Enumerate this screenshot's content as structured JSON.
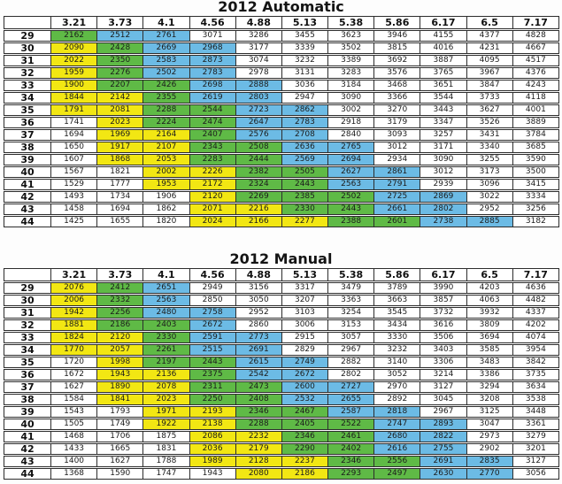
{
  "chart_data": [
    {
      "type": "table",
      "title": "2012 Automatic",
      "columns": [
        "3.21",
        "3.73",
        "4.1",
        "4.56",
        "4.88",
        "5.13",
        "5.38",
        "5.86",
        "6.17",
        "6.5",
        "7.17"
      ],
      "row_labels": [
        "29",
        "30",
        "31",
        "32",
        "33",
        "34",
        "35",
        "36",
        "37",
        "38",
        "39",
        "40",
        "41",
        "42",
        "43",
        "44"
      ],
      "values": [
        [
          2162,
          2512,
          2761,
          3071,
          3286,
          3455,
          3623,
          3946,
          4155,
          4377,
          4828
        ],
        [
          2090,
          2428,
          2669,
          2968,
          3177,
          3339,
          3502,
          3815,
          4016,
          4231,
          4667
        ],
        [
          2022,
          2350,
          2583,
          2873,
          3074,
          3232,
          3389,
          3692,
          3887,
          4095,
          4517
        ],
        [
          1959,
          2276,
          2502,
          2783,
          2978,
          3131,
          3283,
          3576,
          3765,
          3967,
          4376
        ],
        [
          1900,
          2207,
          2426,
          2698,
          2888,
          3036,
          3184,
          3468,
          3651,
          3847,
          4243
        ],
        [
          1844,
          2142,
          2355,
          2619,
          2803,
          2947,
          3090,
          3366,
          3544,
          3733,
          4118
        ],
        [
          1791,
          2081,
          2288,
          2544,
          2723,
          2862,
          3002,
          3270,
          3443,
          3627,
          4001
        ],
        [
          1741,
          2023,
          2224,
          2474,
          2647,
          2783,
          2918,
          3179,
          3347,
          3526,
          3889
        ],
        [
          1694,
          1969,
          2164,
          2407,
          2576,
          2708,
          2840,
          3093,
          3257,
          3431,
          3784
        ],
        [
          1650,
          1917,
          2107,
          2343,
          2508,
          2636,
          2765,
          3012,
          3171,
          3340,
          3685
        ],
        [
          1607,
          1868,
          2053,
          2283,
          2444,
          2569,
          2694,
          2934,
          3090,
          3255,
          3590
        ],
        [
          1567,
          1821,
          2002,
          2226,
          2382,
          2505,
          2627,
          2861,
          3012,
          3173,
          3500
        ],
        [
          1529,
          1777,
          1953,
          2172,
          2324,
          2443,
          2563,
          2791,
          2939,
          3096,
          3415
        ],
        [
          1493,
          1734,
          1906,
          2120,
          2269,
          2385,
          2502,
          2725,
          2869,
          3022,
          3334
        ],
        [
          1458,
          1694,
          1862,
          2071,
          2216,
          2330,
          2443,
          2661,
          2802,
          2952,
          3256
        ],
        [
          1425,
          1655,
          1820,
          2024,
          2166,
          2277,
          2388,
          2601,
          2738,
          2885,
          3182
        ]
      ],
      "cell_colors": [
        [
          "G",
          "B",
          "B",
          "W",
          "W",
          "W",
          "W",
          "W",
          "W",
          "W",
          "W"
        ],
        [
          "Y",
          "G",
          "B",
          "B",
          "W",
          "W",
          "W",
          "W",
          "W",
          "W",
          "W"
        ],
        [
          "Y",
          "G",
          "B",
          "B",
          "W",
          "W",
          "W",
          "W",
          "W",
          "W",
          "W"
        ],
        [
          "Y",
          "G",
          "B",
          "B",
          "W",
          "W",
          "W",
          "W",
          "W",
          "W",
          "W"
        ],
        [
          "Y",
          "G",
          "G",
          "B",
          "B",
          "W",
          "W",
          "W",
          "W",
          "W",
          "W"
        ],
        [
          "Y",
          "Y",
          "G",
          "B",
          "B",
          "W",
          "W",
          "W",
          "W",
          "W",
          "W"
        ],
        [
          "Y",
          "Y",
          "G",
          "G",
          "B",
          "B",
          "W",
          "W",
          "W",
          "W",
          "W"
        ],
        [
          "W",
          "Y",
          "G",
          "G",
          "B",
          "B",
          "W",
          "W",
          "W",
          "W",
          "W"
        ],
        [
          "W",
          "Y",
          "Y",
          "G",
          "B",
          "B",
          "W",
          "W",
          "W",
          "W",
          "W"
        ],
        [
          "W",
          "Y",
          "Y",
          "G",
          "G",
          "B",
          "B",
          "W",
          "W",
          "W",
          "W"
        ],
        [
          "W",
          "Y",
          "Y",
          "G",
          "G",
          "B",
          "B",
          "W",
          "W",
          "W",
          "W"
        ],
        [
          "W",
          "W",
          "Y",
          "Y",
          "G",
          "G",
          "B",
          "B",
          "W",
          "W",
          "W"
        ],
        [
          "W",
          "W",
          "Y",
          "Y",
          "G",
          "G",
          "B",
          "B",
          "W",
          "W",
          "W"
        ],
        [
          "W",
          "W",
          "W",
          "Y",
          "G",
          "G",
          "G",
          "B",
          "B",
          "W",
          "W"
        ],
        [
          "W",
          "W",
          "W",
          "Y",
          "Y",
          "G",
          "G",
          "B",
          "B",
          "W",
          "W"
        ],
        [
          "W",
          "W",
          "W",
          "Y",
          "Y",
          "Y",
          "G",
          "G",
          "B",
          "B",
          "W"
        ]
      ],
      "color_key": {
        "Y": "#f2e713",
        "G": "#5fba46",
        "B": "#6cbbe5",
        "W": "#ffffff"
      }
    },
    {
      "type": "table",
      "title": "2012 Manual",
      "columns": [
        "3.21",
        "3.73",
        "4.1",
        "4.56",
        "4.88",
        "5.13",
        "5.38",
        "5.86",
        "6.17",
        "6.5",
        "7.17"
      ],
      "row_labels": [
        "29",
        "30",
        "31",
        "32",
        "33",
        "34",
        "35",
        "36",
        "37",
        "38",
        "39",
        "40",
        "41",
        "42",
        "43",
        "44"
      ],
      "values": [
        [
          2076,
          2412,
          2651,
          2949,
          3156,
          3317,
          3479,
          3789,
          3990,
          4203,
          4636
        ],
        [
          2006,
          2332,
          2563,
          2850,
          3050,
          3207,
          3363,
          3663,
          3857,
          4063,
          4482
        ],
        [
          1942,
          2256,
          2480,
          2758,
          2952,
          3103,
          3254,
          3545,
          3732,
          3932,
          4337
        ],
        [
          1881,
          2186,
          2403,
          2672,
          2860,
          3006,
          3153,
          3434,
          3616,
          3809,
          4202
        ],
        [
          1824,
          2120,
          2330,
          2591,
          2773,
          2915,
          3057,
          3330,
          3506,
          3694,
          4074
        ],
        [
          1770,
          2057,
          2261,
          2515,
          2691,
          2829,
          2967,
          3232,
          3403,
          3585,
          3954
        ],
        [
          1720,
          1998,
          2197,
          2443,
          2615,
          2749,
          2882,
          3140,
          3306,
          3483,
          3842
        ],
        [
          1672,
          1943,
          2136,
          2375,
          2542,
          2672,
          2802,
          3052,
          3214,
          3386,
          3735
        ],
        [
          1627,
          1890,
          2078,
          2311,
          2473,
          2600,
          2727,
          2970,
          3127,
          3294,
          3634
        ],
        [
          1584,
          1841,
          2023,
          2250,
          2408,
          2532,
          2655,
          2892,
          3045,
          3208,
          3538
        ],
        [
          1543,
          1793,
          1971,
          2193,
          2346,
          2467,
          2587,
          2818,
          2967,
          3125,
          3448
        ],
        [
          1505,
          1749,
          1922,
          2138,
          2288,
          2405,
          2522,
          2747,
          2893,
          3047,
          3361
        ],
        [
          1468,
          1706,
          1875,
          2086,
          2232,
          2346,
          2461,
          2680,
          2822,
          2973,
          3279
        ],
        [
          1433,
          1665,
          1831,
          2036,
          2179,
          2290,
          2402,
          2616,
          2755,
          2902,
          3201
        ],
        [
          1400,
          1627,
          1788,
          1989,
          2128,
          2237,
          2346,
          2556,
          2691,
          2835,
          3127
        ],
        [
          1368,
          1590,
          1747,
          1943,
          2080,
          2186,
          2293,
          2497,
          2630,
          2770,
          3056
        ]
      ],
      "cell_colors": [
        [
          "Y",
          "G",
          "B",
          "W",
          "W",
          "W",
          "W",
          "W",
          "W",
          "W",
          "W"
        ],
        [
          "Y",
          "G",
          "B",
          "W",
          "W",
          "W",
          "W",
          "W",
          "W",
          "W",
          "W"
        ],
        [
          "Y",
          "G",
          "B",
          "B",
          "W",
          "W",
          "W",
          "W",
          "W",
          "W",
          "W"
        ],
        [
          "Y",
          "G",
          "G",
          "B",
          "W",
          "W",
          "W",
          "W",
          "W",
          "W",
          "W"
        ],
        [
          "Y",
          "Y",
          "G",
          "B",
          "B",
          "W",
          "W",
          "W",
          "W",
          "W",
          "W"
        ],
        [
          "Y",
          "Y",
          "G",
          "B",
          "B",
          "W",
          "W",
          "W",
          "W",
          "W",
          "W"
        ],
        [
          "W",
          "Y",
          "G",
          "G",
          "B",
          "B",
          "W",
          "W",
          "W",
          "W",
          "W"
        ],
        [
          "W",
          "Y",
          "Y",
          "G",
          "B",
          "B",
          "W",
          "W",
          "W",
          "W",
          "W"
        ],
        [
          "W",
          "Y",
          "Y",
          "G",
          "G",
          "B",
          "B",
          "W",
          "W",
          "W",
          "W"
        ],
        [
          "W",
          "Y",
          "Y",
          "G",
          "G",
          "B",
          "B",
          "W",
          "W",
          "W",
          "W"
        ],
        [
          "W",
          "W",
          "Y",
          "Y",
          "G",
          "G",
          "B",
          "B",
          "W",
          "W",
          "W"
        ],
        [
          "W",
          "W",
          "Y",
          "Y",
          "G",
          "G",
          "G",
          "B",
          "B",
          "W",
          "W"
        ],
        [
          "W",
          "W",
          "W",
          "Y",
          "Y",
          "G",
          "G",
          "B",
          "B",
          "W",
          "W"
        ],
        [
          "W",
          "W",
          "W",
          "Y",
          "Y",
          "G",
          "G",
          "B",
          "B",
          "W",
          "W"
        ],
        [
          "W",
          "W",
          "W",
          "Y",
          "Y",
          "Y",
          "G",
          "G",
          "B",
          "B",
          "W"
        ],
        [
          "W",
          "W",
          "W",
          "W",
          "Y",
          "Y",
          "G",
          "G",
          "B",
          "B",
          "W"
        ]
      ],
      "color_key": {
        "Y": "#f2e713",
        "G": "#5fba46",
        "B": "#6cbbe5",
        "W": "#ffffff"
      }
    }
  ]
}
